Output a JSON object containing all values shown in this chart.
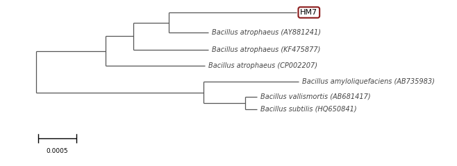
{
  "background_color": "#ffffff",
  "tree_color": "#555555",
  "hm7_box_color": "#8B1A1A",
  "hm7_text": "HM7",
  "scale_bar_value": "0.0005",
  "taxa": [
    "HM7",
    "Bacillus atrophaeus (AY881241)",
    "Bacillus atrophaeus (KF475877)",
    "Bacillus atrophaeus (CP002207)",
    "Bacillus amyloliquefaciens (AB735983)",
    "Bacillus vallismortis (AB681417)",
    "Bacillus subtilis (HQ650841)"
  ],
  "font_size": 7,
  "hm7_font_size": 8,
  "lw": 0.9,
  "figsize": [
    6.58,
    2.4
  ],
  "dpi": 100
}
